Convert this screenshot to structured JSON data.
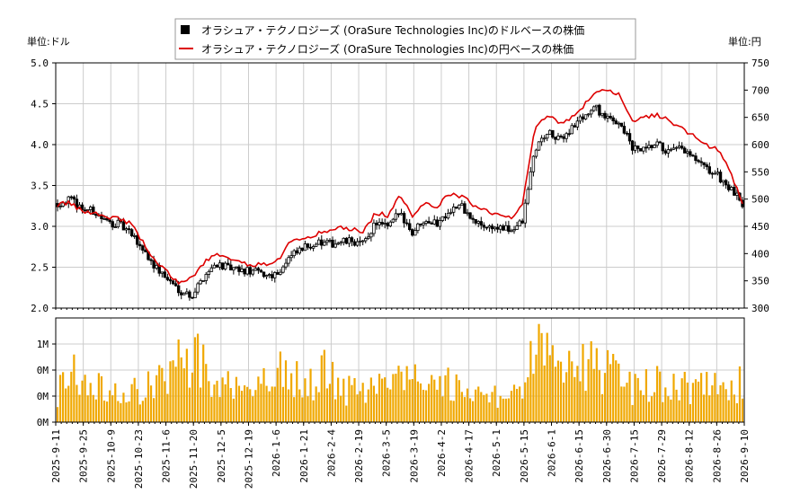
{
  "chart_data": {
    "type": "candlestick+line+bar",
    "legend": {
      "placement": "top-center",
      "items": [
        {
          "label": "オラシュア・テクノロジーズ (OraSure Technologies Inc)のドルベースの株価",
          "color": "#000000",
          "marker": "square"
        },
        {
          "label": "オラシュア・テクノロジーズ (OraSure Technologies Inc)の円ベースの株価",
          "color": "#dd0000",
          "marker": "line"
        }
      ]
    },
    "left_unit": "単位:ドル",
    "right_unit": "単位:円",
    "usd_axis": {
      "ylim": [
        2.0,
        5.0
      ],
      "ticks": [
        "2.0",
        "2.5",
        "3.0",
        "3.5",
        "4.0",
        "4.5",
        "5.0"
      ]
    },
    "jpy_axis": {
      "ylim": [
        300,
        750
      ],
      "ticks": [
        "300",
        "350",
        "400",
        "450",
        "500",
        "550",
        "600",
        "650",
        "700",
        "750"
      ]
    },
    "volume_axis": {
      "ticks": [
        "0M",
        "0M",
        "0M",
        "1M"
      ],
      "max": 1.0
    },
    "x_tick_labels": [
      "2025-9-11",
      "2025-9-25",
      "2025-10-9",
      "2025-10-23",
      "2025-11-6",
      "2025-11-20",
      "2025-12-5",
      "2025-12-19",
      "2026-1-6",
      "2026-1-21",
      "2026-2-4",
      "2026-2-19",
      "2026-3-5",
      "2026-3-19",
      "2026-4-2",
      "2026-4-17",
      "2026-5-1",
      "2026-5-15",
      "2026-6-1",
      "2026-6-15",
      "2026-6-30",
      "2026-7-15",
      "2026-7-29",
      "2026-8-12",
      "2026-8-26",
      "2026-9-10"
    ],
    "usd_anchors": [
      3.28,
      3.33,
      3.22,
      3.18,
      3.05,
      3.03,
      2.9,
      2.72,
      2.5,
      2.35,
      2.22,
      2.15,
      2.4,
      2.55,
      2.48,
      2.45,
      2.45,
      2.4,
      2.43,
      2.62,
      2.72,
      2.8,
      2.78,
      2.8,
      2.82,
      2.78,
      3.05,
      2.98,
      3.18,
      2.92,
      3.1,
      3.03,
      3.2,
      3.25,
      3.05,
      3.0,
      2.98,
      2.95,
      3.05,
      3.93,
      4.15,
      4.05,
      4.2,
      4.35,
      4.45,
      4.3,
      4.28,
      3.95,
      3.92,
      4.0,
      3.9,
      3.95,
      3.82,
      3.7,
      3.62,
      3.45,
      3.28
    ],
    "jpy_anchors": [
      490,
      493,
      478,
      475,
      468,
      465,
      455,
      420,
      385,
      365,
      345,
      355,
      385,
      398,
      390,
      382,
      380,
      380,
      388,
      420,
      428,
      435,
      440,
      448,
      445,
      440,
      475,
      470,
      505,
      470,
      495,
      485,
      510,
      505,
      490,
      480,
      470,
      465,
      490,
      630,
      655,
      640,
      650,
      670,
      700,
      698,
      690,
      640,
      650,
      655,
      645,
      630,
      615,
      600,
      590,
      550,
      495
    ],
    "volume_anchors": [
      0.3,
      0.55,
      0.4,
      0.45,
      0.25,
      0.35,
      0.3,
      0.4,
      0.5,
      0.4,
      0.7,
      0.6,
      0.7,
      0.35,
      0.45,
      0.35,
      0.3,
      0.4,
      0.55,
      0.45,
      0.5,
      0.4,
      0.55,
      0.35,
      0.35,
      0.3,
      0.35,
      0.4,
      0.5,
      0.45,
      0.4,
      0.35,
      0.45,
      0.3,
      0.25,
      0.3,
      0.3,
      0.35,
      0.4,
      0.8,
      0.7,
      0.6,
      0.5,
      0.6,
      0.65,
      0.55,
      0.4,
      0.35,
      0.4,
      0.45,
      0.4,
      0.4,
      0.35,
      0.4,
      0.35,
      0.3,
      0.45
    ]
  }
}
